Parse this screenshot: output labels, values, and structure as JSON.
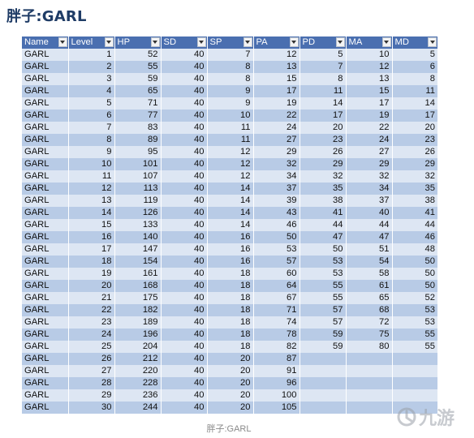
{
  "title": "胖子:GARL",
  "caption": "胖子:GARL",
  "watermark": {
    "text": "九游",
    "icon": "jiuyou-logo-icon",
    "color": "#9aa0a8"
  },
  "colors": {
    "header": "#4a6fb0",
    "row_light": "#dde6f3",
    "row_dark": "#b8cbe6",
    "title": "#1f3c66"
  },
  "table": {
    "columns": [
      "Name",
      "Level",
      "HP",
      "SD",
      "SP",
      "PA",
      "PD",
      "MA",
      "MD"
    ],
    "rows": [
      [
        "GARL",
        "1",
        "52",
        "40",
        "7",
        "12",
        "5",
        "10",
        "5"
      ],
      [
        "GARL",
        "2",
        "55",
        "40",
        "8",
        "13",
        "7",
        "12",
        "6"
      ],
      [
        "GARL",
        "3",
        "59",
        "40",
        "8",
        "15",
        "8",
        "13",
        "8"
      ],
      [
        "GARL",
        "4",
        "65",
        "40",
        "9",
        "17",
        "11",
        "15",
        "11"
      ],
      [
        "GARL",
        "5",
        "71",
        "40",
        "9",
        "19",
        "14",
        "17",
        "14"
      ],
      [
        "GARL",
        "6",
        "77",
        "40",
        "10",
        "22",
        "17",
        "19",
        "17"
      ],
      [
        "GARL",
        "7",
        "83",
        "40",
        "11",
        "24",
        "20",
        "22",
        "20"
      ],
      [
        "GARL",
        "8",
        "89",
        "40",
        "11",
        "27",
        "23",
        "24",
        "23"
      ],
      [
        "GARL",
        "9",
        "95",
        "40",
        "12",
        "29",
        "26",
        "27",
        "26"
      ],
      [
        "GARL",
        "10",
        "101",
        "40",
        "12",
        "32",
        "29",
        "29",
        "29"
      ],
      [
        "GARL",
        "11",
        "107",
        "40",
        "12",
        "34",
        "32",
        "32",
        "32"
      ],
      [
        "GARL",
        "12",
        "113",
        "40",
        "14",
        "37",
        "35",
        "34",
        "35"
      ],
      [
        "GARL",
        "13",
        "119",
        "40",
        "14",
        "39",
        "38",
        "37",
        "38"
      ],
      [
        "GARL",
        "14",
        "126",
        "40",
        "14",
        "43",
        "41",
        "40",
        "41"
      ],
      [
        "GARL",
        "15",
        "133",
        "40",
        "14",
        "46",
        "44",
        "44",
        "44"
      ],
      [
        "GARL",
        "16",
        "140",
        "40",
        "16",
        "50",
        "47",
        "47",
        "46"
      ],
      [
        "GARL",
        "17",
        "147",
        "40",
        "16",
        "53",
        "50",
        "51",
        "48"
      ],
      [
        "GARL",
        "18",
        "154",
        "40",
        "16",
        "57",
        "53",
        "54",
        "50"
      ],
      [
        "GARL",
        "19",
        "161",
        "40",
        "18",
        "60",
        "53",
        "58",
        "50"
      ],
      [
        "GARL",
        "20",
        "168",
        "40",
        "18",
        "64",
        "55",
        "61",
        "50"
      ],
      [
        "GARL",
        "21",
        "175",
        "40",
        "18",
        "67",
        "55",
        "65",
        "52"
      ],
      [
        "GARL",
        "22",
        "182",
        "40",
        "18",
        "71",
        "57",
        "68",
        "53"
      ],
      [
        "GARL",
        "23",
        "189",
        "40",
        "18",
        "74",
        "57",
        "72",
        "53"
      ],
      [
        "GARL",
        "24",
        "196",
        "40",
        "18",
        "78",
        "59",
        "75",
        "55"
      ],
      [
        "GARL",
        "25",
        "204",
        "40",
        "18",
        "82",
        "59",
        "80",
        "55"
      ],
      [
        "GARL",
        "26",
        "212",
        "40",
        "20",
        "87",
        "",
        "",
        ""
      ],
      [
        "GARL",
        "27",
        "220",
        "40",
        "20",
        "91",
        "",
        "",
        ""
      ],
      [
        "GARL",
        "28",
        "228",
        "40",
        "20",
        "96",
        "",
        "",
        ""
      ],
      [
        "GARL",
        "29",
        "236",
        "40",
        "20",
        "100",
        "",
        "",
        ""
      ],
      [
        "GARL",
        "30",
        "244",
        "40",
        "20",
        "105",
        "",
        "",
        ""
      ]
    ]
  }
}
